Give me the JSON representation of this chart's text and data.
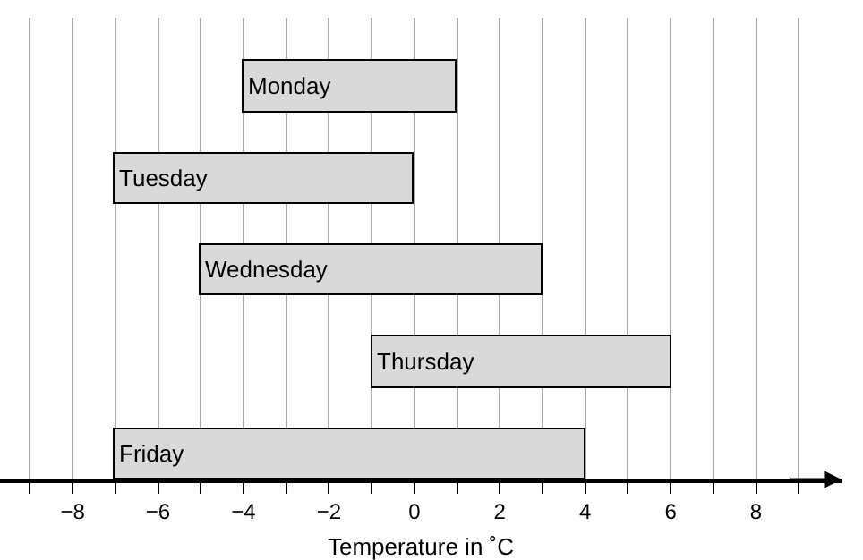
{
  "chart_data": {
    "type": "bar",
    "orientation": "horizontal",
    "xlabel": "Temperature in ˚C",
    "categories": [
      "Monday",
      "Tuesday",
      "Wednesday",
      "Thursday",
      "Friday"
    ],
    "base": [
      -4,
      -7,
      -5,
      -1,
      -7
    ],
    "values": [
      5,
      7,
      8,
      7,
      11
    ],
    "color": "#d9d9d9",
    "xlim": [
      -9.7,
      10
    ],
    "xticks": [
      {
        "value": -9,
        "label": null
      },
      -8,
      {
        "value": -7,
        "label": null
      },
      -6,
      {
        "value": -5,
        "label": null
      },
      -4,
      {
        "value": -3,
        "label": null
      },
      -2,
      {
        "value": -1,
        "label": null
      },
      0,
      {
        "value": 1,
        "label": null
      },
      2,
      {
        "value": 3,
        "label": null
      },
      4,
      {
        "value": 5,
        "label": null
      },
      6,
      {
        "value": 7,
        "label": null
      },
      8,
      {
        "value": 9,
        "label": null
      }
    ],
    "grid": "x",
    "legend": false
  }
}
